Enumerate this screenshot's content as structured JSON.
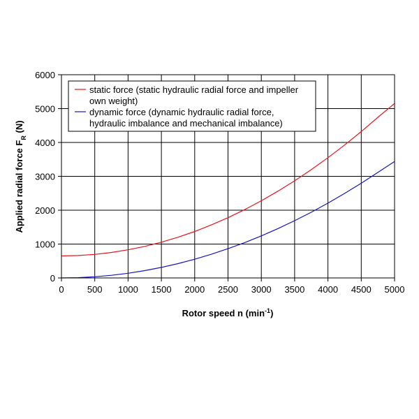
{
  "chart_data": {
    "type": "line",
    "title": "",
    "xlabel": {
      "main": "Rotor speed n (min",
      "sup": "-1",
      "tail": ")"
    },
    "ylabel": {
      "main": "Applied radial force F",
      "sub": "R",
      "tail": " (N)"
    },
    "xlim": [
      0,
      5000
    ],
    "ylim": [
      0,
      6000
    ],
    "xticks": [
      0,
      500,
      1000,
      1500,
      2000,
      2500,
      3000,
      3500,
      4000,
      4500,
      5000
    ],
    "yticks": [
      0,
      1000,
      2000,
      3000,
      4000,
      5000,
      6000
    ],
    "grid": true,
    "legend_position": "top-left",
    "x": [
      0,
      250,
      500,
      750,
      1000,
      1250,
      1500,
      1750,
      2000,
      2250,
      2500,
      2750,
      3000,
      3250,
      3500,
      3750,
      4000,
      4250,
      4500,
      4750,
      5000
    ],
    "series": [
      {
        "name_lines": [
          "static force (static hydraulic radial force and impeller",
          "own weight)"
        ],
        "color": "#e8141b",
        "values": [
          650,
          662,
          695,
          752,
          830,
          932,
          1056,
          1202,
          1372,
          1565,
          1780,
          2018,
          2279,
          2562,
          2869,
          3198,
          3550,
          3924,
          4322,
          4742,
          5150
        ]
      },
      {
        "name_lines": [
          "dynamic force (dynamic hydraulic radial force,",
          "hydraulic imbalance and mechanical imbalance)"
        ],
        "color": "#1414c8",
        "values": [
          0,
          9,
          35,
          78,
          138,
          216,
          311,
          423,
          552,
          699,
          863,
          1044,
          1242,
          1458,
          1691,
          1941,
          2209,
          2494,
          2796,
          3116,
          3440
        ]
      }
    ]
  }
}
